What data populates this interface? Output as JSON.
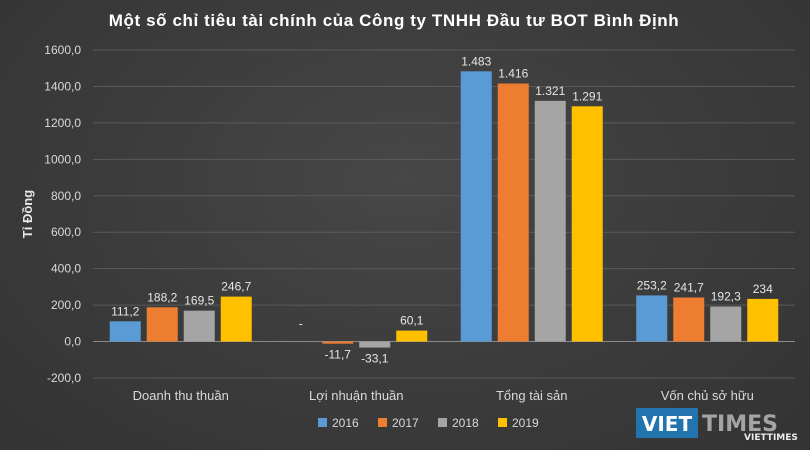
{
  "chart_data": {
    "type": "bar",
    "title": "Một số chỉ tiêu tài chính của Công ty TNHH Đầu tư BOT Bình Định",
    "ylabel": "Tỉ Đồng",
    "xlabel": "",
    "ylim": [
      -200,
      1600
    ],
    "ytick_step": 200,
    "ytick_labels": [
      "-200,0",
      "0,0",
      "200,0",
      "400,0",
      "600,0",
      "800,0",
      "1000,0",
      "1200,0",
      "1400,0",
      "1600,0"
    ],
    "grid": true,
    "legend_position": "bottom",
    "categories": [
      "Doanh thu thuần",
      "Lợi nhuận thuần",
      "Tổng tài sản",
      "Vốn chủ sở hữu"
    ],
    "series": [
      {
        "name": "2016",
        "color": "#5b9bd5",
        "values": [
          111.2,
          null,
          1483,
          253.2
        ],
        "labels": [
          "111,2",
          "-",
          "1.483",
          "253,2"
        ]
      },
      {
        "name": "2017",
        "color": "#ed7d31",
        "values": [
          188.2,
          -11.7,
          1416,
          241.7
        ],
        "labels": [
          "188,2",
          "-11,7",
          "1.416",
          "241,7"
        ]
      },
      {
        "name": "2018",
        "color": "#a5a5a5",
        "values": [
          169.5,
          -33.1,
          1321,
          192.3
        ],
        "labels": [
          "169,5",
          "-33,1",
          "1.321",
          "192,3"
        ]
      },
      {
        "name": "2019",
        "color": "#ffc000",
        "values": [
          246.7,
          60.1,
          1291,
          234
        ],
        "labels": [
          "246,7",
          "60,1",
          "1.291",
          "234"
        ]
      }
    ]
  },
  "watermark": {
    "brand_left": "VIET",
    "brand_right": "TIMES",
    "brand_small": "VIETTIMES"
  }
}
